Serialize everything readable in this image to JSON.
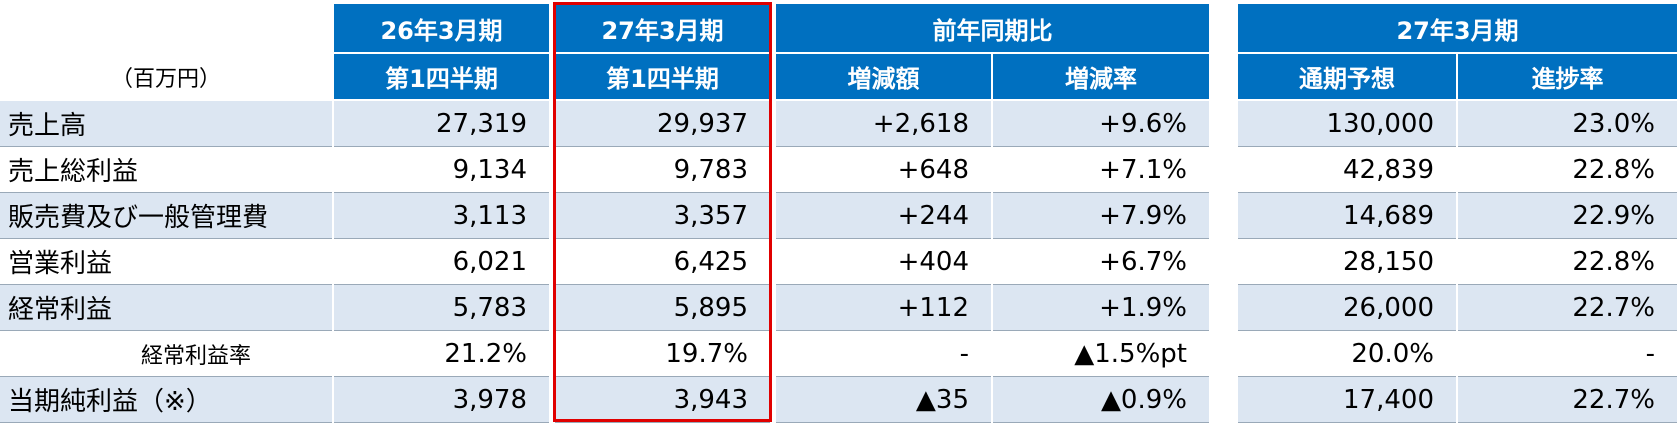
{
  "header": {
    "unit": "（百万円）",
    "col1": [
      "26年3月期",
      "第1四半期"
    ],
    "col2": [
      "27年3月期",
      "第1四半期"
    ],
    "yoy": "前年同期比",
    "yoy_cols": [
      "増減額",
      "増減率"
    ],
    "forecast": "27年3月期",
    "forecast_cols": [
      "通期予想",
      "進捗率"
    ]
  },
  "rows": [
    {
      "label": "売上高",
      "cells": [
        "27,319",
        "29,937",
        "+2,618",
        "+9.6%",
        "130,000",
        "23.0%"
      ]
    },
    {
      "label": "売上総利益",
      "cells": [
        "9,134",
        "9,783",
        "+648",
        "+7.1%",
        "42,839",
        "22.8%"
      ]
    },
    {
      "label": "販売費及び一般管理費",
      "cells": [
        "3,113",
        "3,357",
        "+244",
        "+7.9%",
        "14,689",
        "22.9%"
      ]
    },
    {
      "label": "営業利益",
      "cells": [
        "6,021",
        "6,425",
        "+404",
        "+6.7%",
        "28,150",
        "22.8%"
      ]
    },
    {
      "label": "経常利益",
      "cells": [
        "5,783",
        "5,895",
        "+112",
        "+1.9%",
        "26,000",
        "22.7%"
      ]
    },
    {
      "label": "経常利益率",
      "cells": [
        "21.2%",
        "19.7%",
        "-",
        "▲1.5%pt",
        "20.0%",
        "-"
      ]
    },
    {
      "label": "当期純利益（※）",
      "cells": [
        "3,978",
        "3,943",
        "▲35",
        "▲0.9%",
        "17,400",
        "22.7%"
      ]
    }
  ]
}
